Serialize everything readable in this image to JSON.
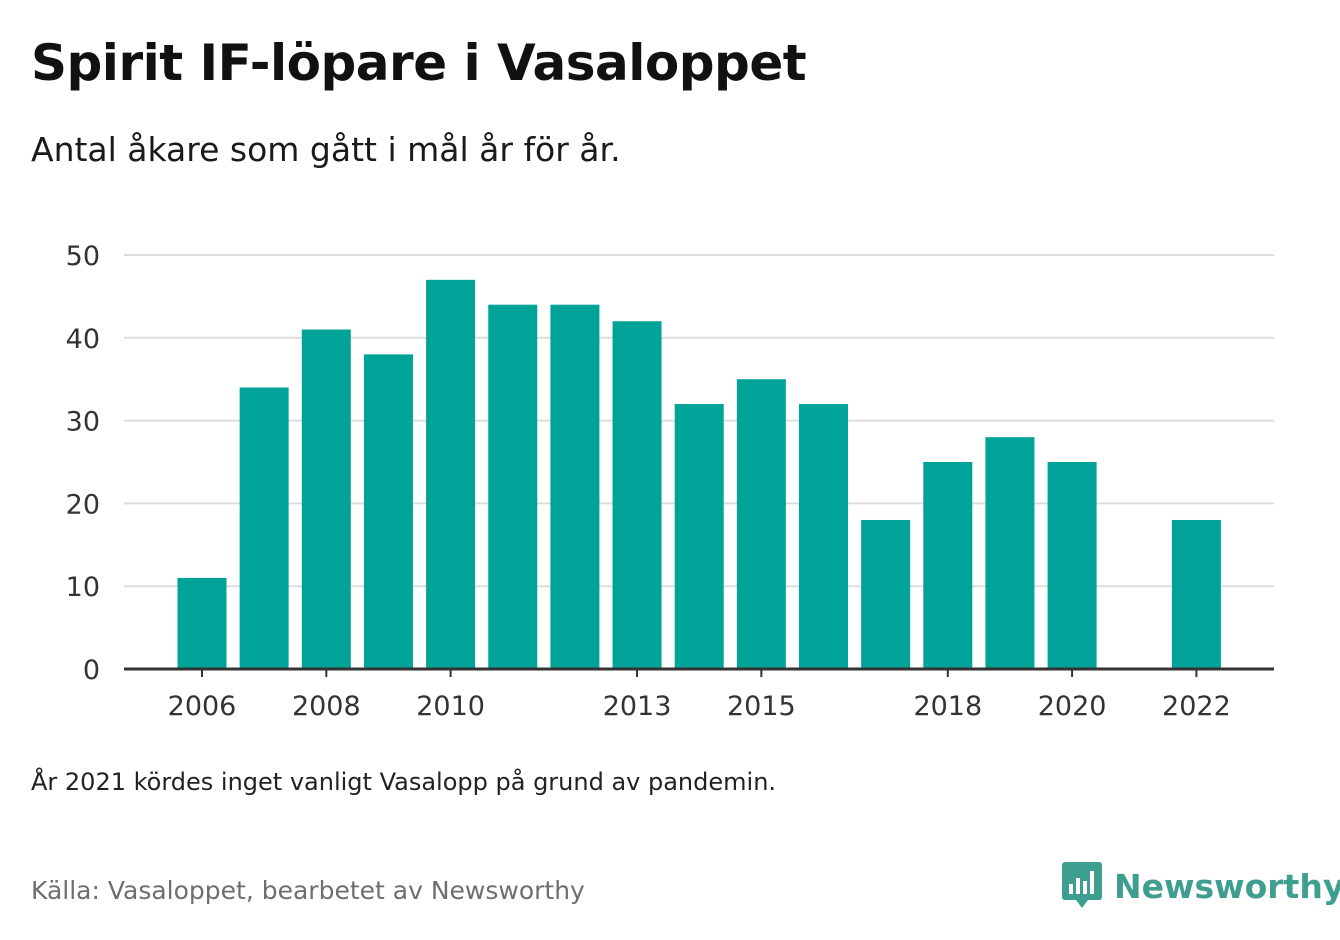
{
  "header": {
    "title": "Spirit IF-löpare i Vasaloppet",
    "subtitle": "Antal åkare som gått i mål år för år."
  },
  "footer": {
    "note": "År 2021 kördes inget vanligt Vasalopp på grund av pandemin.",
    "source": "Källa: Vasaloppet, bearbetet av Newsworthy",
    "logo_text": "Newsworthy",
    "logo_icon": "newsworthy-bar-chart-icon"
  },
  "colors": {
    "bar": "#00A398",
    "grid": "#dddddd",
    "axis": "#333333",
    "logo": "#3e9e90"
  },
  "chart_data": {
    "type": "bar",
    "title": "Spirit IF-löpare i Vasaloppet",
    "subtitle": "Antal åkare som gått i mål år för år.",
    "xlabel": "",
    "ylabel": "",
    "categories": [
      "2006",
      "2007",
      "2008",
      "2009",
      "2010",
      "2011",
      "2012",
      "2013",
      "2014",
      "2015",
      "2016",
      "2017",
      "2018",
      "2019",
      "2020",
      "2021",
      "2022"
    ],
    "values": [
      11,
      34,
      41,
      38,
      47,
      44,
      44,
      42,
      32,
      35,
      32,
      18,
      25,
      28,
      25,
      null,
      18
    ],
    "x_tick_labels": [
      "2006",
      "2008",
      "2010",
      "2013",
      "2015",
      "2018",
      "2020",
      "2022"
    ],
    "y_ticks": [
      0,
      10,
      20,
      30,
      40,
      50
    ],
    "ylim": [
      0,
      50
    ],
    "grid": true,
    "legend": "none"
  }
}
